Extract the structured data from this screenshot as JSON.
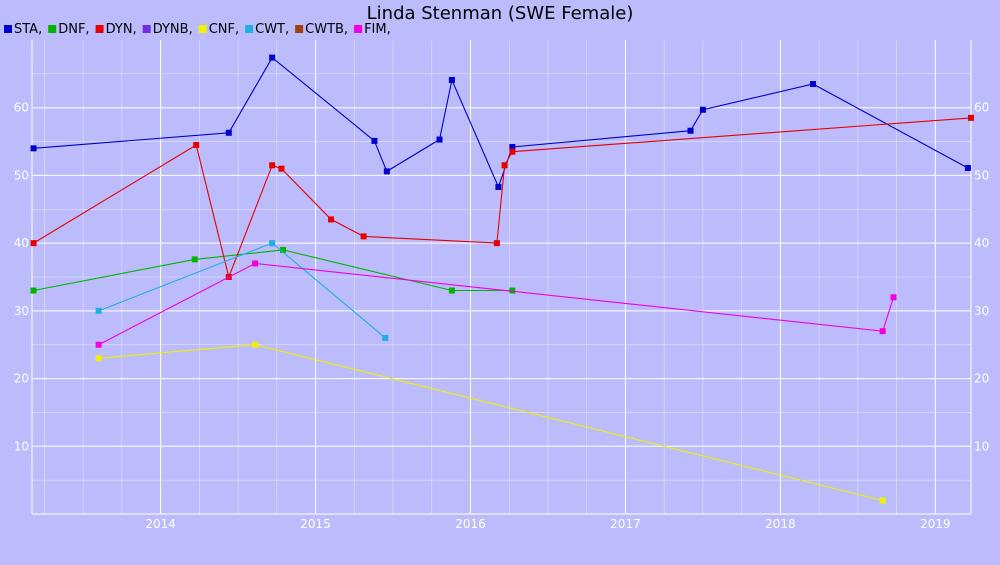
{
  "chart_data": {
    "type": "line",
    "title": "Linda Stenman (SWE Female)",
    "xlabel": "",
    "ylabel": "",
    "xlim": [
      2013.17,
      2019.23
    ],
    "ylim": [
      0,
      70
    ],
    "x_ticks": [
      "2014",
      "2015",
      "2016",
      "2017",
      "2018",
      "2019"
    ],
    "y_ticks": [
      "10",
      "20",
      "30",
      "40",
      "50",
      "60"
    ],
    "grid": true,
    "legend_position": "top-left",
    "series": [
      {
        "name": "STA,",
        "color": "#0000cc",
        "points": [
          [
            2013.18,
            54
          ],
          [
            2014.44,
            56.3
          ],
          [
            2014.72,
            67.4
          ],
          [
            2015.38,
            55.1
          ],
          [
            2015.46,
            50.6
          ],
          [
            2015.8,
            55.3
          ],
          [
            2015.88,
            64.1
          ],
          [
            2016.18,
            48.3
          ],
          [
            2016.27,
            54.2
          ],
          [
            2017.42,
            56.6
          ],
          [
            2017.5,
            59.7
          ],
          [
            2018.21,
            63.5
          ],
          [
            2019.21,
            51.1
          ]
        ]
      },
      {
        "name": "DNF,",
        "color": "#00b400",
        "points": [
          [
            2013.18,
            33
          ],
          [
            2014.22,
            37.6
          ],
          [
            2014.79,
            39
          ],
          [
            2015.88,
            33
          ],
          [
            2016.27,
            33
          ]
        ]
      },
      {
        "name": "DYN,",
        "color": "#e60000",
        "points": [
          [
            2013.18,
            40
          ],
          [
            2014.23,
            54.5
          ],
          [
            2014.44,
            35
          ],
          [
            2014.72,
            51.5
          ],
          [
            2014.78,
            51
          ],
          [
            2015.1,
            43.5
          ],
          [
            2015.31,
            41
          ],
          [
            2016.17,
            40
          ],
          [
            2016.22,
            51.5
          ],
          [
            2016.27,
            53.5
          ],
          [
            2019.23,
            58.5
          ]
        ]
      },
      {
        "name": "DYNB,",
        "color": "#7030e0",
        "points": []
      },
      {
        "name": "CNF,",
        "color": "#f0f000",
        "points": [
          [
            2013.6,
            23
          ],
          [
            2014.61,
            25
          ],
          [
            2018.66,
            2
          ]
        ]
      },
      {
        "name": "CWT,",
        "color": "#20b0e0",
        "points": [
          [
            2013.6,
            30
          ],
          [
            2014.72,
            40
          ],
          [
            2015.45,
            26
          ]
        ]
      },
      {
        "name": "CWTB,",
        "color": "#a04010",
        "points": []
      },
      {
        "name": "FIM,",
        "color": "#f000e0",
        "points": [
          [
            2013.6,
            25
          ],
          [
            2014.61,
            37
          ],
          [
            2018.66,
            27
          ],
          [
            2018.73,
            32
          ]
        ]
      }
    ]
  }
}
